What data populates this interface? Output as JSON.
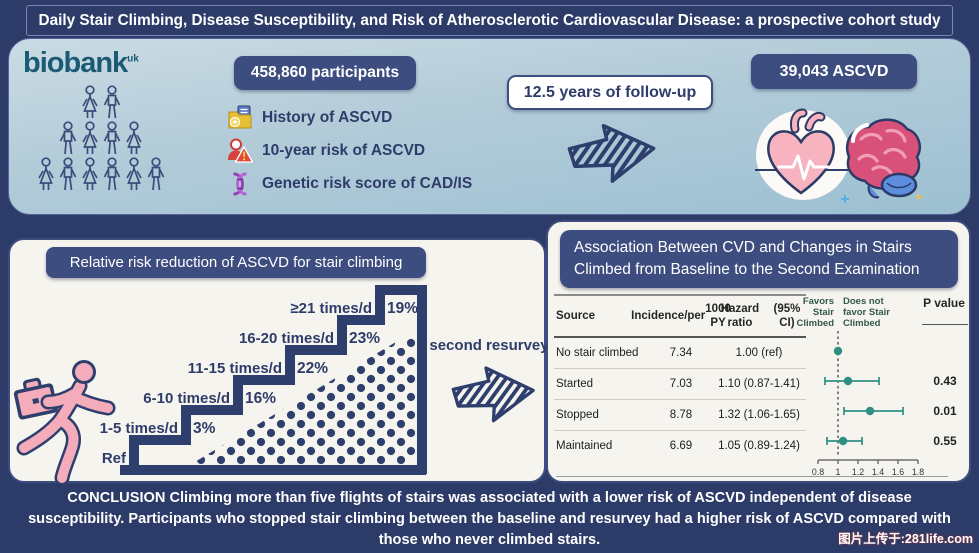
{
  "page": {
    "title": "Daily Stair Climbing, Disease Susceptibility, and Risk of Atherosclerotic Cardiovascular Disease: a prospective cohort study",
    "watermark": "图片上传于:281life.com"
  },
  "top_section": {
    "logo_text": "biobank",
    "logo_sup": "uk",
    "participants_label": "458,860 participants",
    "risk_items": [
      {
        "icon": "folder-plus-icon",
        "label": "History of ASCVD"
      },
      {
        "icon": "person-warning-icon",
        "label": "10-year risk of ASCVD"
      },
      {
        "icon": "dna-icon",
        "label": "Genetic risk score of CAD/IS"
      }
    ],
    "followup_label": "12.5 years of follow-up",
    "outcome_label": "39,043 ASCVD"
  },
  "left_panel": {
    "header": "Relative risk reduction of ASCVD for stair climbing",
    "resurvey_label": "second resurvey"
  },
  "right_panel": {
    "header": "Association Between CVD and Changes in Stairs Climbed from Baseline to the Second Examination"
  },
  "conclusion": "CONCLUSION Climbing more than five flights of stairs was associated with a lower risk of ASCVD  independent of disease susceptibility. Participants who stopped stair climbing between the baseline and resurvey had a higher risk of ASCVD compared with those who never climbed stairs.",
  "colors": {
    "navy": "#2d3b68",
    "box_navy": "#3e4d7f",
    "stair_navy": "#2e3f6e",
    "teal": "#2f8f82",
    "pink": "#f4abba",
    "panel_bg": "#f6f4ef"
  },
  "chart_data": [
    {
      "type": "bar",
      "title": "Relative risk reduction of ASCVD for stair climbing",
      "categories": [
        "Ref",
        "1-5 times/d",
        "6-10 times/d",
        "11-15 times/d",
        "16-20 times/d",
        "≥21 times/d"
      ],
      "values": [
        0,
        3,
        16,
        22,
        23,
        19
      ],
      "value_labels": [
        "",
        "3%",
        "16%",
        "22%",
        "23%",
        "19%"
      ],
      "ylabel": "Relative risk reduction (%)",
      "note": "staircase infographic; each step labeled with relative risk reduction of ASCVD"
    },
    {
      "type": "table",
      "title": "Association Between CVD and Changes in Stairs Climbed from Baseline to the Second Examination",
      "columns": [
        "Source",
        "Incidence/per 1000 PY",
        "Hazard ratio (95% CI)",
        "P value"
      ],
      "header_lines": [
        [
          "Source"
        ],
        [
          "Incidence/per",
          "1000 PY"
        ],
        [
          "Hazard ratio",
          "(95% CI)"
        ]
      ],
      "rows": [
        {
          "source": "No stair climbed",
          "incidence": "7.34",
          "hazard": "1.00 (ref)",
          "hr": 1.0,
          "ci_low": null,
          "ci_high": null,
          "p": ""
        },
        {
          "source": "Started",
          "incidence": "7.03",
          "hazard": "1.10 (0.87-1.41)",
          "hr": 1.1,
          "ci_low": 0.87,
          "ci_high": 1.41,
          "p": "0.43"
        },
        {
          "source": "Stopped",
          "incidence": "8.78",
          "hazard": "1.32 (1.06-1.65)",
          "hr": 1.32,
          "ci_low": 1.06,
          "ci_high": 1.65,
          "p": "0.01"
        },
        {
          "source": "Maintained",
          "incidence": "6.69",
          "hazard": "1.05 (0.89-1.24)",
          "hr": 1.05,
          "ci_low": 0.89,
          "ci_high": 1.24,
          "p": "0.55"
        }
      ],
      "forest": {
        "axis_ticks": [
          "0.8",
          "1",
          "1.2",
          "1.4",
          "1.6",
          "1.8"
        ],
        "axis_range": [
          0.8,
          1.8
        ],
        "ref_line": 1,
        "favors_lines": [
          "Favors",
          "Stair",
          "Climbed"
        ],
        "not_favor_lines": [
          "Does  not",
          "favor Stair",
          "Climbed"
        ],
        "p_value_header": "P value"
      }
    }
  ]
}
